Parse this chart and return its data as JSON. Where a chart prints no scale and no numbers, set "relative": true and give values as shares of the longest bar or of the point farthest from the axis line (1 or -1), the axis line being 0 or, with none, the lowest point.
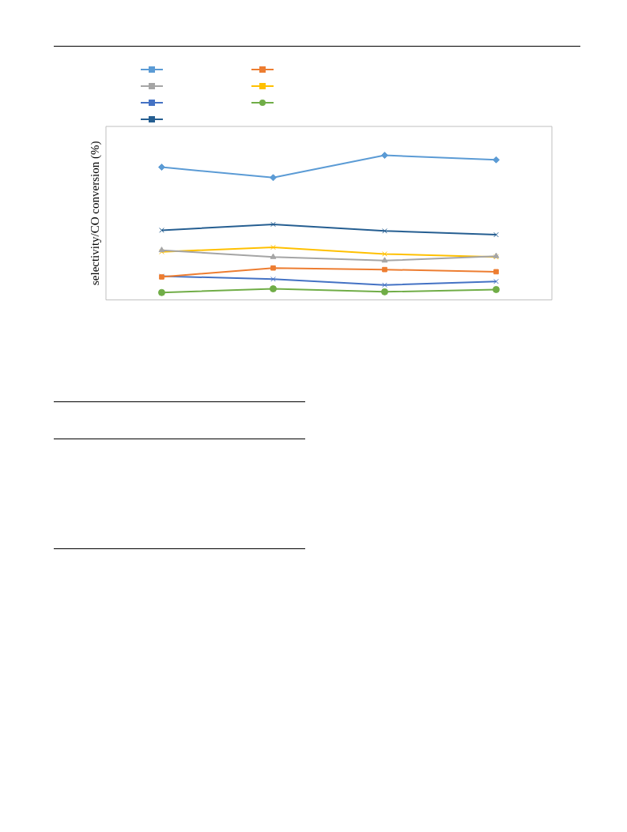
{
  "chart_data": {
    "type": "line",
    "ylabel": "selectivity/CO conversion (%)",
    "relative": true,
    "categories": [
      null,
      null,
      null,
      null
    ],
    "grid": false,
    "series": [
      {
        "color": "#5b9bd5",
        "marker": "diamond",
        "values": [
          0.918,
          0.846,
          1,
          0.969
        ]
      },
      {
        "color": "#ed7d31",
        "marker": "square",
        "values": [
          0.159,
          0.221,
          0.21,
          0.195
        ]
      },
      {
        "color": "#a5a5a5",
        "marker": "triangle",
        "values": [
          0.344,
          0.297,
          0.272,
          0.303
        ]
      },
      {
        "color": "#ffc000",
        "marker": "cross",
        "values": [
          0.333,
          0.364,
          0.318,
          0.297
        ]
      },
      {
        "color": "#4472c4",
        "marker": "cross",
        "values": [
          0.164,
          0.144,
          0.103,
          0.128
        ]
      },
      {
        "color": "#70ad47",
        "marker": "circle",
        "values": [
          0.051,
          0.077,
          0.056,
          0.072
        ]
      },
      {
        "color": "#255e91",
        "marker": "cross",
        "values": [
          0.482,
          0.523,
          0.477,
          0.451
        ]
      }
    ]
  }
}
